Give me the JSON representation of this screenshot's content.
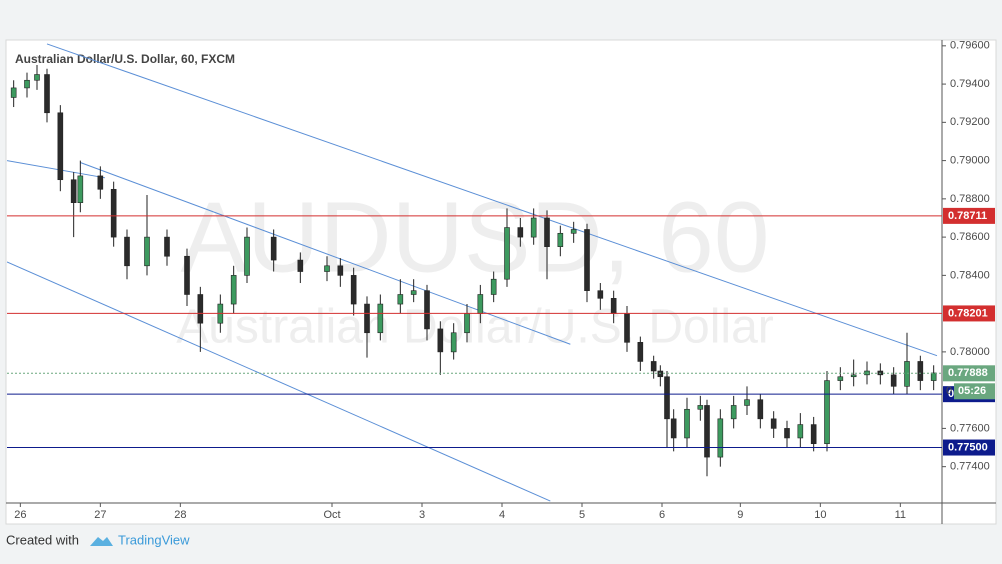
{
  "chart_data": {
    "type": "candlestick",
    "title": "Australian Dollar/U.S. Dollar, 60, FXCM",
    "watermark": [
      "AUDUSD, 60",
      "Australian Dollar/U.S. Dollar"
    ],
    "up_color": "#3d9a5f",
    "down_color": "#2b2b2b",
    "x": [
      2,
      6,
      9,
      12,
      16,
      20,
      22,
      28,
      32,
      36,
      42,
      48,
      54,
      58,
      64,
      68,
      72,
      80,
      88,
      96,
      100,
      104,
      108,
      112,
      118,
      122,
      126,
      130,
      134,
      138,
      142,
      146,
      150,
      154,
      158,
      162,
      166,
      170,
      174,
      178,
      182,
      186,
      190,
      194,
      196,
      198,
      200,
      204,
      208,
      210,
      214,
      218,
      222,
      226,
      230,
      234,
      238,
      242,
      246,
      250,
      254,
      258,
      262,
      266,
      270,
      274,
      278
    ],
    "open": [
      0.7933,
      0.7938,
      0.7942,
      0.7945,
      0.7925,
      0.789,
      0.7878,
      0.7892,
      0.7885,
      0.786,
      0.7845,
      0.786,
      0.785,
      0.783,
      0.7815,
      0.7825,
      0.784,
      0.786,
      0.7848,
      0.7842,
      0.7845,
      0.784,
      0.7825,
      0.781,
      0.7825,
      0.783,
      0.7832,
      0.7812,
      0.78,
      0.781,
      0.782,
      0.783,
      0.7838,
      0.7865,
      0.786,
      0.787,
      0.7855,
      0.7862,
      0.7864,
      0.7832,
      0.7828,
      0.782,
      0.7805,
      0.7795,
      0.779,
      0.7787,
      0.7765,
      0.7755,
      0.777,
      0.7772,
      0.7745,
      0.7765,
      0.7772,
      0.7775,
      0.7765,
      0.776,
      0.7755,
      0.7762,
      0.7752,
      0.7785,
      0.7787,
      0.7788,
      0.779,
      0.7788,
      0.7782,
      0.7795,
      0.7785
    ],
    "high": [
      0.7942,
      0.7946,
      0.795,
      0.7948,
      0.7929,
      0.7894,
      0.79,
      0.7897,
      0.7889,
      0.7864,
      0.7882,
      0.7864,
      0.7854,
      0.7834,
      0.783,
      0.7845,
      0.7865,
      0.7864,
      0.7852,
      0.785,
      0.7849,
      0.7844,
      0.7829,
      0.783,
      0.7838,
      0.7838,
      0.7835,
      0.7816,
      0.7815,
      0.7825,
      0.7835,
      0.7842,
      0.7875,
      0.787,
      0.7875,
      0.7874,
      0.7866,
      0.7868,
      0.7867,
      0.7836,
      0.7832,
      0.7824,
      0.7808,
      0.7798,
      0.7793,
      0.779,
      0.777,
      0.7776,
      0.7777,
      0.7775,
      0.777,
      0.7777,
      0.7782,
      0.7778,
      0.7769,
      0.7764,
      0.7768,
      0.7766,
      0.779,
      0.7792,
      0.7796,
      0.7795,
      0.7794,
      0.7792,
      0.781,
      0.7798,
      0.7793
    ],
    "low": [
      0.7928,
      0.7933,
      0.7937,
      0.792,
      0.7884,
      0.786,
      0.7873,
      0.788,
      0.7855,
      0.7838,
      0.784,
      0.7845,
      0.7824,
      0.78,
      0.781,
      0.782,
      0.7836,
      0.7842,
      0.7836,
      0.7837,
      0.7834,
      0.7819,
      0.7797,
      0.7806,
      0.782,
      0.7826,
      0.7806,
      0.7788,
      0.7796,
      0.7805,
      0.7815,
      0.7826,
      0.7834,
      0.7855,
      0.7856,
      0.7838,
      0.785,
      0.7857,
      0.7826,
      0.7822,
      0.7815,
      0.78,
      0.779,
      0.7786,
      0.7782,
      0.775,
      0.7748,
      0.775,
      0.7764,
      0.7735,
      0.774,
      0.776,
      0.7767,
      0.776,
      0.7755,
      0.775,
      0.775,
      0.7748,
      0.7748,
      0.778,
      0.7782,
      0.7783,
      0.7783,
      0.7778,
      0.7778,
      0.778,
      0.778
    ],
    "close": [
      0.7938,
      0.7942,
      0.7945,
      0.7925,
      0.789,
      0.7878,
      0.7892,
      0.7885,
      0.786,
      0.7845,
      0.786,
      0.785,
      0.783,
      0.7815,
      0.7825,
      0.784,
      0.786,
      0.7848,
      0.7842,
      0.7845,
      0.784,
      0.7825,
      0.781,
      0.7825,
      0.783,
      0.7832,
      0.7812,
      0.78,
      0.781,
      0.782,
      0.783,
      0.7838,
      0.7865,
      0.786,
      0.787,
      0.7855,
      0.7862,
      0.7864,
      0.7832,
      0.7828,
      0.782,
      0.7805,
      0.7795,
      0.779,
      0.7787,
      0.7765,
      0.7755,
      0.777,
      0.7772,
      0.7745,
      0.7765,
      0.7772,
      0.7775,
      0.7765,
      0.776,
      0.7755,
      0.7762,
      0.7752,
      0.7785,
      0.7787,
      0.7788,
      0.779,
      0.7788,
      0.7782,
      0.7795,
      0.7785,
      0.7789
    ],
    "xlim": [
      0,
      280.5
    ],
    "ylim": [
      0.7721,
      0.7962
    ],
    "xticks": [
      {
        "value": 4,
        "label": "26"
      },
      {
        "value": 28,
        "label": "27"
      },
      {
        "value": 52,
        "label": "28"
      },
      {
        "value": 97.5,
        "label": "Oct"
      },
      {
        "value": 124.5,
        "label": "3"
      },
      {
        "value": 148.5,
        "label": "4"
      },
      {
        "value": 172.5,
        "label": "5"
      },
      {
        "value": 196.5,
        "label": "6"
      },
      {
        "value": 220,
        "label": "9"
      },
      {
        "value": 244,
        "label": "10"
      },
      {
        "value": 268,
        "label": "11"
      }
    ],
    "yticks": [
      {
        "value": 0.796,
        "label": "0.79600"
      },
      {
        "value": 0.794,
        "label": "0.79400"
      },
      {
        "value": 0.792,
        "label": "0.79200"
      },
      {
        "value": 0.79,
        "label": "0.79000"
      },
      {
        "value": 0.788,
        "label": "0.78800"
      },
      {
        "value": 0.786,
        "label": "0.78600"
      },
      {
        "value": 0.784,
        "label": "0.78400"
      },
      {
        "value": 0.78,
        "label": "0.78000"
      },
      {
        "value": 0.776,
        "label": "0.77600"
      },
      {
        "value": 0.774,
        "label": "0.77400"
      }
    ],
    "levels": [
      {
        "value": 0.78711,
        "color": "#d32f2f"
      },
      {
        "value": 0.78201,
        "color": "#d32f2f"
      },
      {
        "value": 0.77779,
        "color": "#0d1b8c"
      },
      {
        "value": 0.775,
        "label": "0.77500",
        "color": "#0d1b8c"
      }
    ],
    "current_price": {
      "value": 0.77888,
      "color": "#6aa77f"
    },
    "countdown": {
      "prefix": "0",
      "text": "05:26"
    },
    "trend_lines": [
      {
        "x": [
          12,
          279
        ],
        "y": [
          0.7961,
          0.7798
        ]
      },
      {
        "x": [
          22,
          169
        ],
        "y": [
          0.7899,
          0.7804
        ]
      },
      {
        "x": [
          0,
          29.4
        ],
        "y": [
          0.79,
          0.7891
        ]
      },
      {
        "x": [
          0,
          163
        ],
        "y": [
          0.7847,
          0.7722
        ]
      }
    ],
    "trend_color": "#5b8fd6",
    "grid": false,
    "footer": {
      "created": "Created with",
      "brand": "TradingView"
    }
  }
}
